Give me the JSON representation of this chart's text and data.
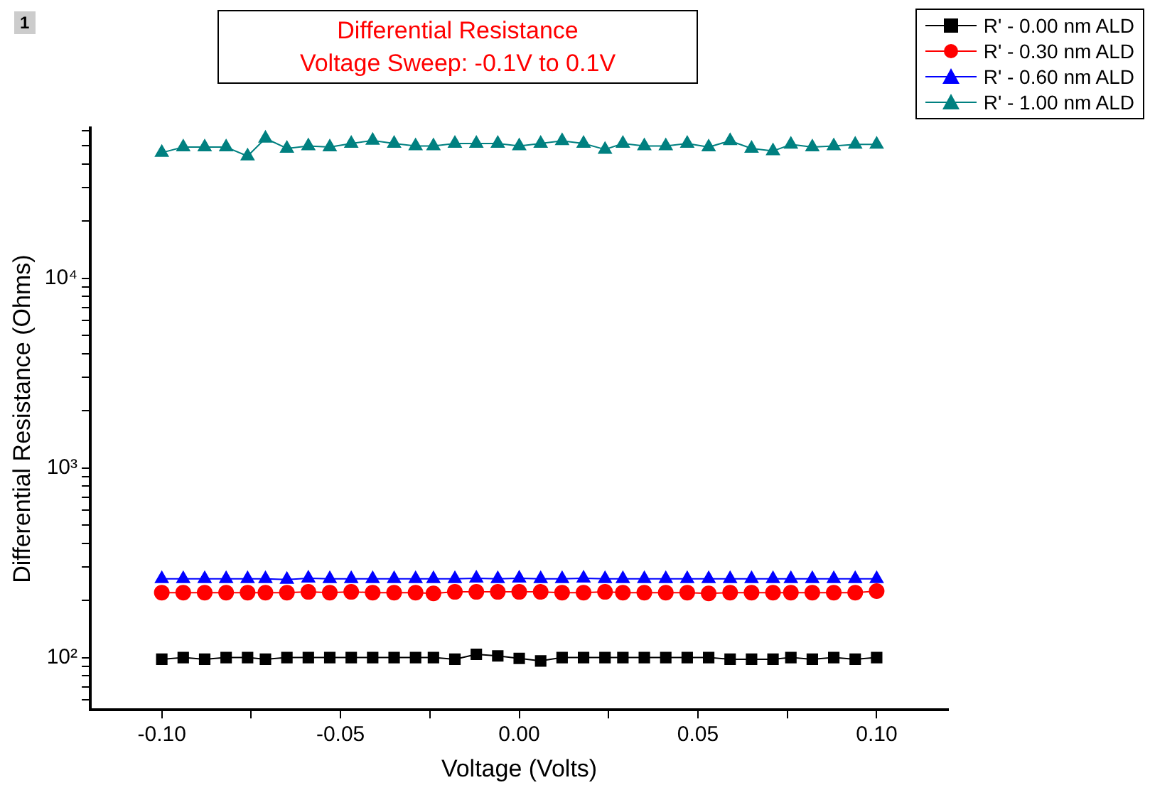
{
  "chart_data": {
    "type": "line",
    "title": "Differential Resistance\nVoltage Sweep: -0.1V to 0.1V",
    "xlabel": "Voltage (Volts)",
    "ylabel": "Differential Resistance (Ohms)",
    "annotations": [
      "1"
    ],
    "x": [
      -0.1,
      -0.094,
      -0.088,
      -0.082,
      -0.076,
      -0.071,
      -0.065,
      -0.059,
      -0.053,
      -0.047,
      -0.041,
      -0.035,
      -0.029,
      -0.024,
      -0.018,
      -0.012,
      -0.006,
      0,
      0.006,
      0.012,
      0.018,
      0.024,
      0.029,
      0.035,
      0.041,
      0.047,
      0.053,
      0.059,
      0.065,
      0.071,
      0.076,
      0.082,
      0.088,
      0.094,
      0.1
    ],
    "series": [
      {
        "name": "R' - 0.00 nm ALD",
        "color": "#000000",
        "marker": "square",
        "values": [
          98,
          100,
          98,
          100,
          100,
          98,
          100,
          100,
          100,
          100,
          100,
          100,
          100,
          100,
          98,
          104,
          102,
          99,
          96,
          100,
          100,
          100,
          100,
          100,
          100,
          100,
          100,
          98,
          98,
          98,
          100,
          98,
          100,
          98,
          100
        ]
      },
      {
        "name": "R' - 0.30 nm ALD",
        "color": "#ff0000",
        "marker": "circle",
        "values": [
          220,
          220,
          220,
          220,
          220,
          220,
          220,
          222,
          220,
          222,
          220,
          220,
          220,
          218,
          222,
          222,
          222,
          222,
          222,
          220,
          220,
          222,
          220,
          220,
          220,
          220,
          218,
          220,
          220,
          220,
          220,
          220,
          220,
          220,
          224
        ]
      },
      {
        "name": "R' - 0.60 nm ALD",
        "color": "#0000ff",
        "marker": "triangle",
        "values": [
          260,
          260,
          260,
          260,
          260,
          260,
          258,
          262,
          260,
          260,
          260,
          260,
          260,
          260,
          260,
          262,
          260,
          262,
          260,
          260,
          262,
          260,
          260,
          260,
          260,
          260,
          260,
          260,
          260,
          260,
          260,
          260,
          260,
          260,
          260
        ]
      },
      {
        "name": "R' - 1.00 nm ALD",
        "color": "#008080",
        "marker": "triangle",
        "values": [
          45900,
          49100,
          49100,
          49100,
          44000,
          54600,
          48300,
          49800,
          49100,
          51300,
          53200,
          51300,
          49800,
          49800,
          51300,
          51300,
          51300,
          49800,
          51300,
          53000,
          51300,
          47700,
          51300,
          49800,
          49800,
          51300,
          49100,
          53000,
          48300,
          46800,
          50700,
          49100,
          49800,
          50700,
          50700
        ]
      }
    ],
    "log": "y",
    "xlim": [
      -0.12,
      0.12
    ],
    "ylim": [
      53,
      62000
    ],
    "xticks": [
      {
        "value": -0.1,
        "label": "-0.10"
      },
      {
        "value": -0.075,
        "label": null
      },
      {
        "value": -0.05,
        "label": "-0.05"
      },
      {
        "value": -0.025,
        "label": null
      },
      {
        "value": 0,
        "label": "0.00"
      },
      {
        "value": 0.025,
        "label": null
      },
      {
        "value": 0.05,
        "label": "0.05"
      },
      {
        "value": 0.075,
        "label": null
      },
      {
        "value": 0.1,
        "label": "0.10"
      }
    ],
    "yticks": [
      {
        "value": 60,
        "label": null
      },
      {
        "value": 70,
        "label": null
      },
      {
        "value": 80,
        "label": null
      },
      {
        "value": 90,
        "label": null
      },
      {
        "value": 100,
        "label": "10²"
      },
      {
        "value": 200,
        "label": null
      },
      {
        "value": 300,
        "label": null
      },
      {
        "value": 400,
        "label": null
      },
      {
        "value": 500,
        "label": null
      },
      {
        "value": 600,
        "label": null
      },
      {
        "value": 700,
        "label": null
      },
      {
        "value": 800,
        "label": null
      },
      {
        "value": 900,
        "label": null
      },
      {
        "value": 1000,
        "label": "10³"
      },
      {
        "value": 2000,
        "label": null
      },
      {
        "value": 3000,
        "label": null
      },
      {
        "value": 4000,
        "label": null
      },
      {
        "value": 5000,
        "label": null
      },
      {
        "value": 6000,
        "label": null
      },
      {
        "value": 7000,
        "label": null
      },
      {
        "value": 8000,
        "label": null
      },
      {
        "value": 9000,
        "label": null
      },
      {
        "value": 10000,
        "label": "10⁴"
      },
      {
        "value": 20000,
        "label": null
      },
      {
        "value": 30000,
        "label": null
      },
      {
        "value": 40000,
        "label": null
      },
      {
        "value": 50000,
        "label": null
      },
      {
        "value": 60000,
        "label": null
      }
    ],
    "grid": false,
    "legend": "top right",
    "line_style": "solid"
  }
}
